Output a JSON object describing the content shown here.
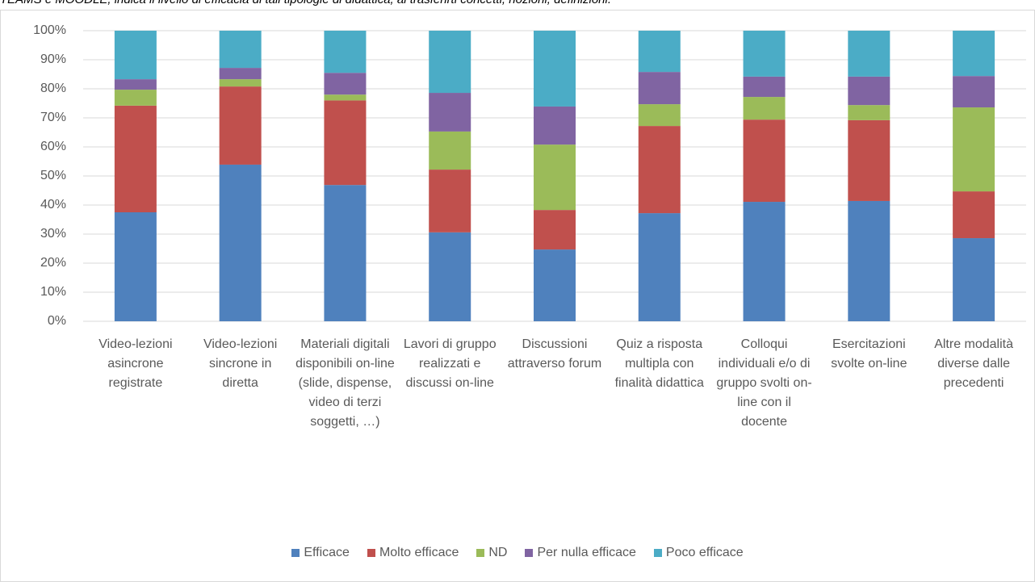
{
  "chart_data": {
    "type": "stacked_bar",
    "title": "TEAMS e MOODLE, indica il livello di efficacia di tali tipologie di didattica, al trasferirti concetti, nozioni, definizioni.",
    "categories": [
      "Video-lezioni asincrone registrate",
      "Video-lezioni sincrone in diretta",
      "Materiali digitali disponibili on-line (slide, dispense, video di terzi soggetti, …)",
      "Lavori di gruppo realizzati e discussi on-line",
      "Discussioni attraverso forum",
      "Quiz a risposta multipla con finalità didattica",
      "Colloqui individuali e/o di gruppo svolti on-line con il docente",
      "Esercitazioni svolte on-line",
      "Altre modalità diverse dalle precedenti"
    ],
    "series": [
      {
        "name": "Efficace",
        "color": "#4f81bd",
        "values": [
          37.5,
          53.9,
          46.9,
          30.6,
          24.7,
          37.2,
          41.1,
          41.4,
          28.6
        ]
      },
      {
        "name": "Molto efficace",
        "color": "#c0504d",
        "values": [
          36.7,
          26.9,
          29.1,
          21.6,
          13.6,
          30.0,
          28.3,
          27.8,
          16.1
        ]
      },
      {
        "name": "ND",
        "color": "#9bbb59",
        "values": [
          5.5,
          2.5,
          2.0,
          13.1,
          22.5,
          7.5,
          7.8,
          5.2,
          28.9
        ]
      },
      {
        "name": "Per nulla efficace",
        "color": "#8064a2",
        "values": [
          3.6,
          3.9,
          7.5,
          13.3,
          13.1,
          11.1,
          7.0,
          9.8,
          10.8
        ]
      },
      {
        "name": "Poco efficace",
        "color": "#4bacc6",
        "values": [
          16.7,
          12.8,
          14.5,
          21.4,
          26.1,
          14.2,
          15.8,
          15.8,
          15.6
        ]
      }
    ],
    "ylim": [
      0,
      100
    ],
    "yticks": [
      {
        "value": 0,
        "label": "0%"
      },
      {
        "value": 10,
        "label": "10%"
      },
      {
        "value": 20,
        "label": "20%"
      },
      {
        "value": 30,
        "label": "30%"
      },
      {
        "value": 40,
        "label": "40%"
      },
      {
        "value": 50,
        "label": "50%"
      },
      {
        "value": 60,
        "label": "60%"
      },
      {
        "value": 70,
        "label": "70%"
      },
      {
        "value": 80,
        "label": "80%"
      },
      {
        "value": 90,
        "label": "90%"
      },
      {
        "value": 100,
        "label": "100%"
      }
    ],
    "grid": true,
    "legend": "bottom"
  }
}
